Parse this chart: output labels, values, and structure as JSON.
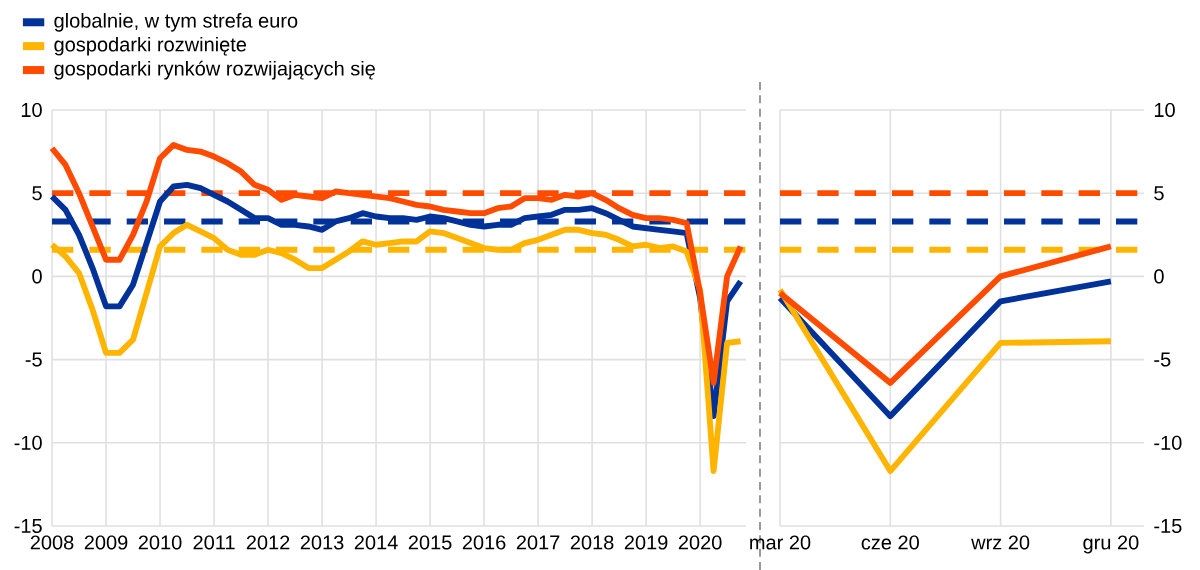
{
  "chart_data": [
    {
      "type": "line",
      "legend": "top left",
      "grid": true,
      "marker": "none",
      "line_style": "solid",
      "x": [
        2008,
        2008.25,
        2008.5,
        2008.75,
        2009,
        2009.25,
        2009.5,
        2009.75,
        2010,
        2010.25,
        2010.5,
        2010.75,
        2011,
        2011.25,
        2011.5,
        2011.75,
        2012,
        2012.25,
        2012.5,
        2012.75,
        2013,
        2013.25,
        2013.5,
        2013.75,
        2014,
        2014.25,
        2014.5,
        2014.75,
        2015,
        2015.25,
        2015.5,
        2015.75,
        2016,
        2016.25,
        2016.5,
        2016.75,
        2017,
        2017.25,
        2017.5,
        2017.75,
        2018,
        2018.25,
        2018.5,
        2018.75,
        2019,
        2019.25,
        2019.5,
        2019.75,
        2020,
        2020.25,
        2020.5,
        2020.75
      ],
      "xlim": [
        2008,
        2020.85
      ],
      "xticks": [
        2008,
        2009,
        2010,
        2011,
        2012,
        2013,
        2014,
        2015,
        2016,
        2017,
        2018,
        2019,
        2020
      ],
      "ylim": [
        -15,
        10
      ],
      "yticks": [
        -15,
        -10,
        -5,
        0,
        5,
        10
      ],
      "series": [
        {
          "name": "globalnie, w tym strefa euro",
          "color": "#003299",
          "values": [
            4.8,
            4.0,
            2.5,
            0.5,
            -1.8,
            -1.8,
            -0.5,
            2.0,
            4.5,
            5.4,
            5.5,
            5.3,
            4.9,
            4.5,
            4.0,
            3.5,
            3.5,
            3.1,
            3.1,
            3.0,
            2.8,
            3.3,
            3.5,
            3.8,
            3.6,
            3.5,
            3.5,
            3.4,
            3.6,
            3.5,
            3.3,
            3.1,
            3.0,
            3.1,
            3.1,
            3.5,
            3.6,
            3.7,
            4.0,
            4.0,
            4.1,
            3.8,
            3.4,
            3.0,
            2.9,
            2.8,
            2.7,
            2.6,
            -1.3,
            -8.4,
            -1.5,
            -0.3
          ]
        },
        {
          "name": "gospodarki rozwinięte",
          "color": "#ffb400",
          "values": [
            1.9,
            1.2,
            0.2,
            -2.0,
            -4.6,
            -4.6,
            -3.8,
            -1.0,
            1.8,
            2.6,
            3.1,
            2.7,
            2.3,
            1.6,
            1.3,
            1.3,
            1.6,
            1.4,
            1.0,
            0.5,
            0.5,
            1.0,
            1.5,
            2.1,
            1.9,
            2.0,
            2.1,
            2.1,
            2.7,
            2.6,
            2.3,
            2.0,
            1.7,
            1.6,
            1.6,
            2.0,
            2.2,
            2.5,
            2.8,
            2.8,
            2.6,
            2.5,
            2.2,
            1.8,
            1.9,
            1.7,
            1.8,
            1.5,
            -0.8,
            -11.7,
            -4.0,
            -3.9
          ]
        },
        {
          "name": "gospodarki rynków rozwijających się",
          "color": "#ff4b00",
          "values": [
            7.7,
            6.7,
            5.0,
            3.0,
            1.0,
            1.0,
            2.5,
            4.5,
            7.1,
            7.9,
            7.6,
            7.5,
            7.2,
            6.8,
            6.3,
            5.5,
            5.2,
            4.6,
            4.9,
            4.8,
            4.7,
            5.1,
            5.0,
            4.9,
            4.8,
            4.7,
            4.5,
            4.3,
            4.2,
            4.0,
            3.9,
            3.8,
            3.8,
            4.1,
            4.2,
            4.7,
            4.7,
            4.6,
            4.9,
            4.8,
            5.0,
            4.6,
            4.1,
            3.7,
            3.5,
            3.5,
            3.4,
            3.2,
            -1.0,
            -6.4,
            0.0,
            1.8
          ]
        }
      ],
      "ref_lines": [
        {
          "axis": "y",
          "value": 5,
          "color": "#ff4b00",
          "line_style": "dashed"
        },
        {
          "axis": "y",
          "value": 3.3,
          "color": "#003299",
          "line_style": "dashed"
        },
        {
          "axis": "y",
          "value": 1.6,
          "color": "#ffb400",
          "line_style": "dashed"
        }
      ]
    },
    {
      "type": "line",
      "legend": false,
      "grid": true,
      "marker": "none",
      "line_style": "solid",
      "categories": [
        "mar 20",
        "cze 20",
        "wrz 20",
        "gru 20"
      ],
      "ylim": [
        -15,
        10
      ],
      "yticks": [
        -15,
        -10,
        -5,
        0,
        5,
        10
      ],
      "series": [
        {
          "color": "#003299",
          "values": [
            -1.3,
            -8.4,
            -1.5,
            -0.3
          ]
        },
        {
          "color": "#ffb400",
          "values": [
            -0.8,
            -11.7,
            -4.0,
            -3.9
          ]
        },
        {
          "color": "#ff4b00",
          "values": [
            -1.0,
            -6.4,
            0.0,
            1.8
          ]
        }
      ],
      "ref_lines": [
        {
          "axis": "y",
          "value": 5,
          "color": "#ff4b00",
          "line_style": "dashed"
        },
        {
          "axis": "y",
          "value": 3.3,
          "color": "#003299",
          "line_style": "dashed"
        },
        {
          "axis": "y",
          "value": 1.6,
          "color": "#ffb400",
          "line_style": "dashed"
        }
      ]
    }
  ]
}
